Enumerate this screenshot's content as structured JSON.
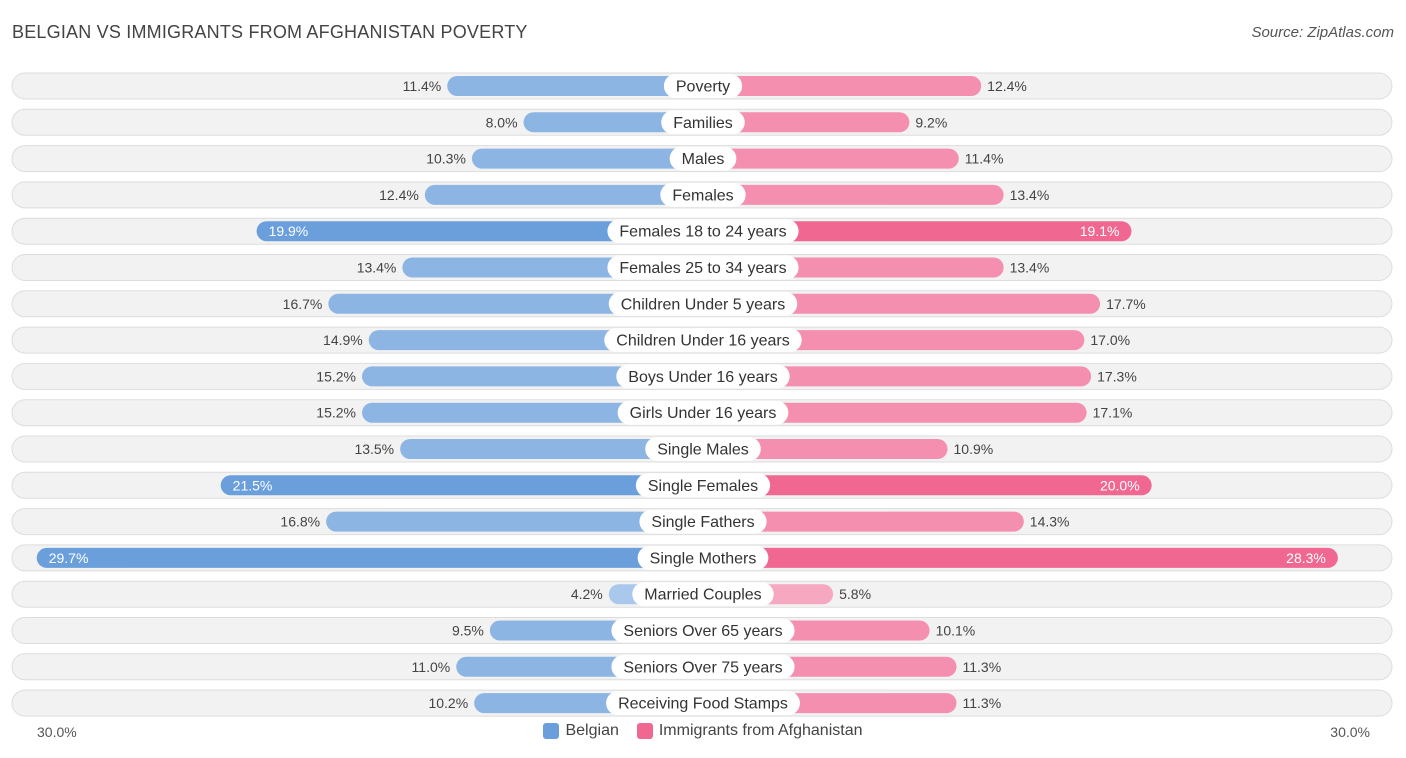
{
  "title": "BELGIAN VS IMMIGRANTS FROM AFGHANISTAN POVERTY",
  "source": "Source: ZipAtlas.com",
  "axis": {
    "left_label": "30.0%",
    "right_label": "30.0%"
  },
  "legend": {
    "left": "Belgian",
    "right": "Immigrants from Afghanistan"
  },
  "colors": {
    "left": "#6a9fdc",
    "left_light": "#a9c8ec",
    "right": "#f06892",
    "right_light": "#f5a8c0",
    "row_bg": "#eeeeee",
    "row_border": "#dddddd"
  },
  "chart_data": {
    "type": "bar",
    "orientation": "horizontal-diverging",
    "title": "BELGIAN VS IMMIGRANTS FROM AFGHANISTAN POVERTY",
    "xlim": [
      0,
      30
    ],
    "categories": [
      "Poverty",
      "Families",
      "Males",
      "Females",
      "Females 18 to 24 years",
      "Females 25 to 34 years",
      "Children Under 5 years",
      "Children Under 16 years",
      "Boys Under 16 years",
      "Girls Under 16 years",
      "Single Males",
      "Single Females",
      "Single Fathers",
      "Single Mothers",
      "Married Couples",
      "Seniors Over 65 years",
      "Seniors Over 75 years",
      "Receiving Food Stamps"
    ],
    "series": [
      {
        "name": "Belgian",
        "values": [
          11.4,
          8.0,
          10.3,
          12.4,
          19.9,
          13.4,
          16.7,
          14.9,
          15.2,
          15.2,
          13.5,
          21.5,
          16.8,
          29.7,
          4.2,
          9.5,
          11.0,
          10.2
        ],
        "labels": [
          "11.4%",
          "8.0%",
          "10.3%",
          "12.4%",
          "19.9%",
          "13.4%",
          "16.7%",
          "14.9%",
          "15.2%",
          "15.2%",
          "13.5%",
          "21.5%",
          "16.8%",
          "29.7%",
          "4.2%",
          "9.5%",
          "11.0%",
          "10.2%"
        ]
      },
      {
        "name": "Immigrants from Afghanistan",
        "values": [
          12.4,
          9.2,
          11.4,
          13.4,
          19.1,
          13.4,
          17.7,
          17.0,
          17.3,
          17.1,
          10.9,
          20.0,
          14.3,
          28.3,
          5.8,
          10.1,
          11.3,
          11.3
        ],
        "labels": [
          "12.4%",
          "9.2%",
          "11.4%",
          "13.4%",
          "19.1%",
          "13.4%",
          "17.7%",
          "17.0%",
          "17.3%",
          "17.1%",
          "10.9%",
          "20.0%",
          "14.3%",
          "28.3%",
          "5.8%",
          "10.1%",
          "11.3%",
          "11.3%"
        ]
      }
    ]
  }
}
